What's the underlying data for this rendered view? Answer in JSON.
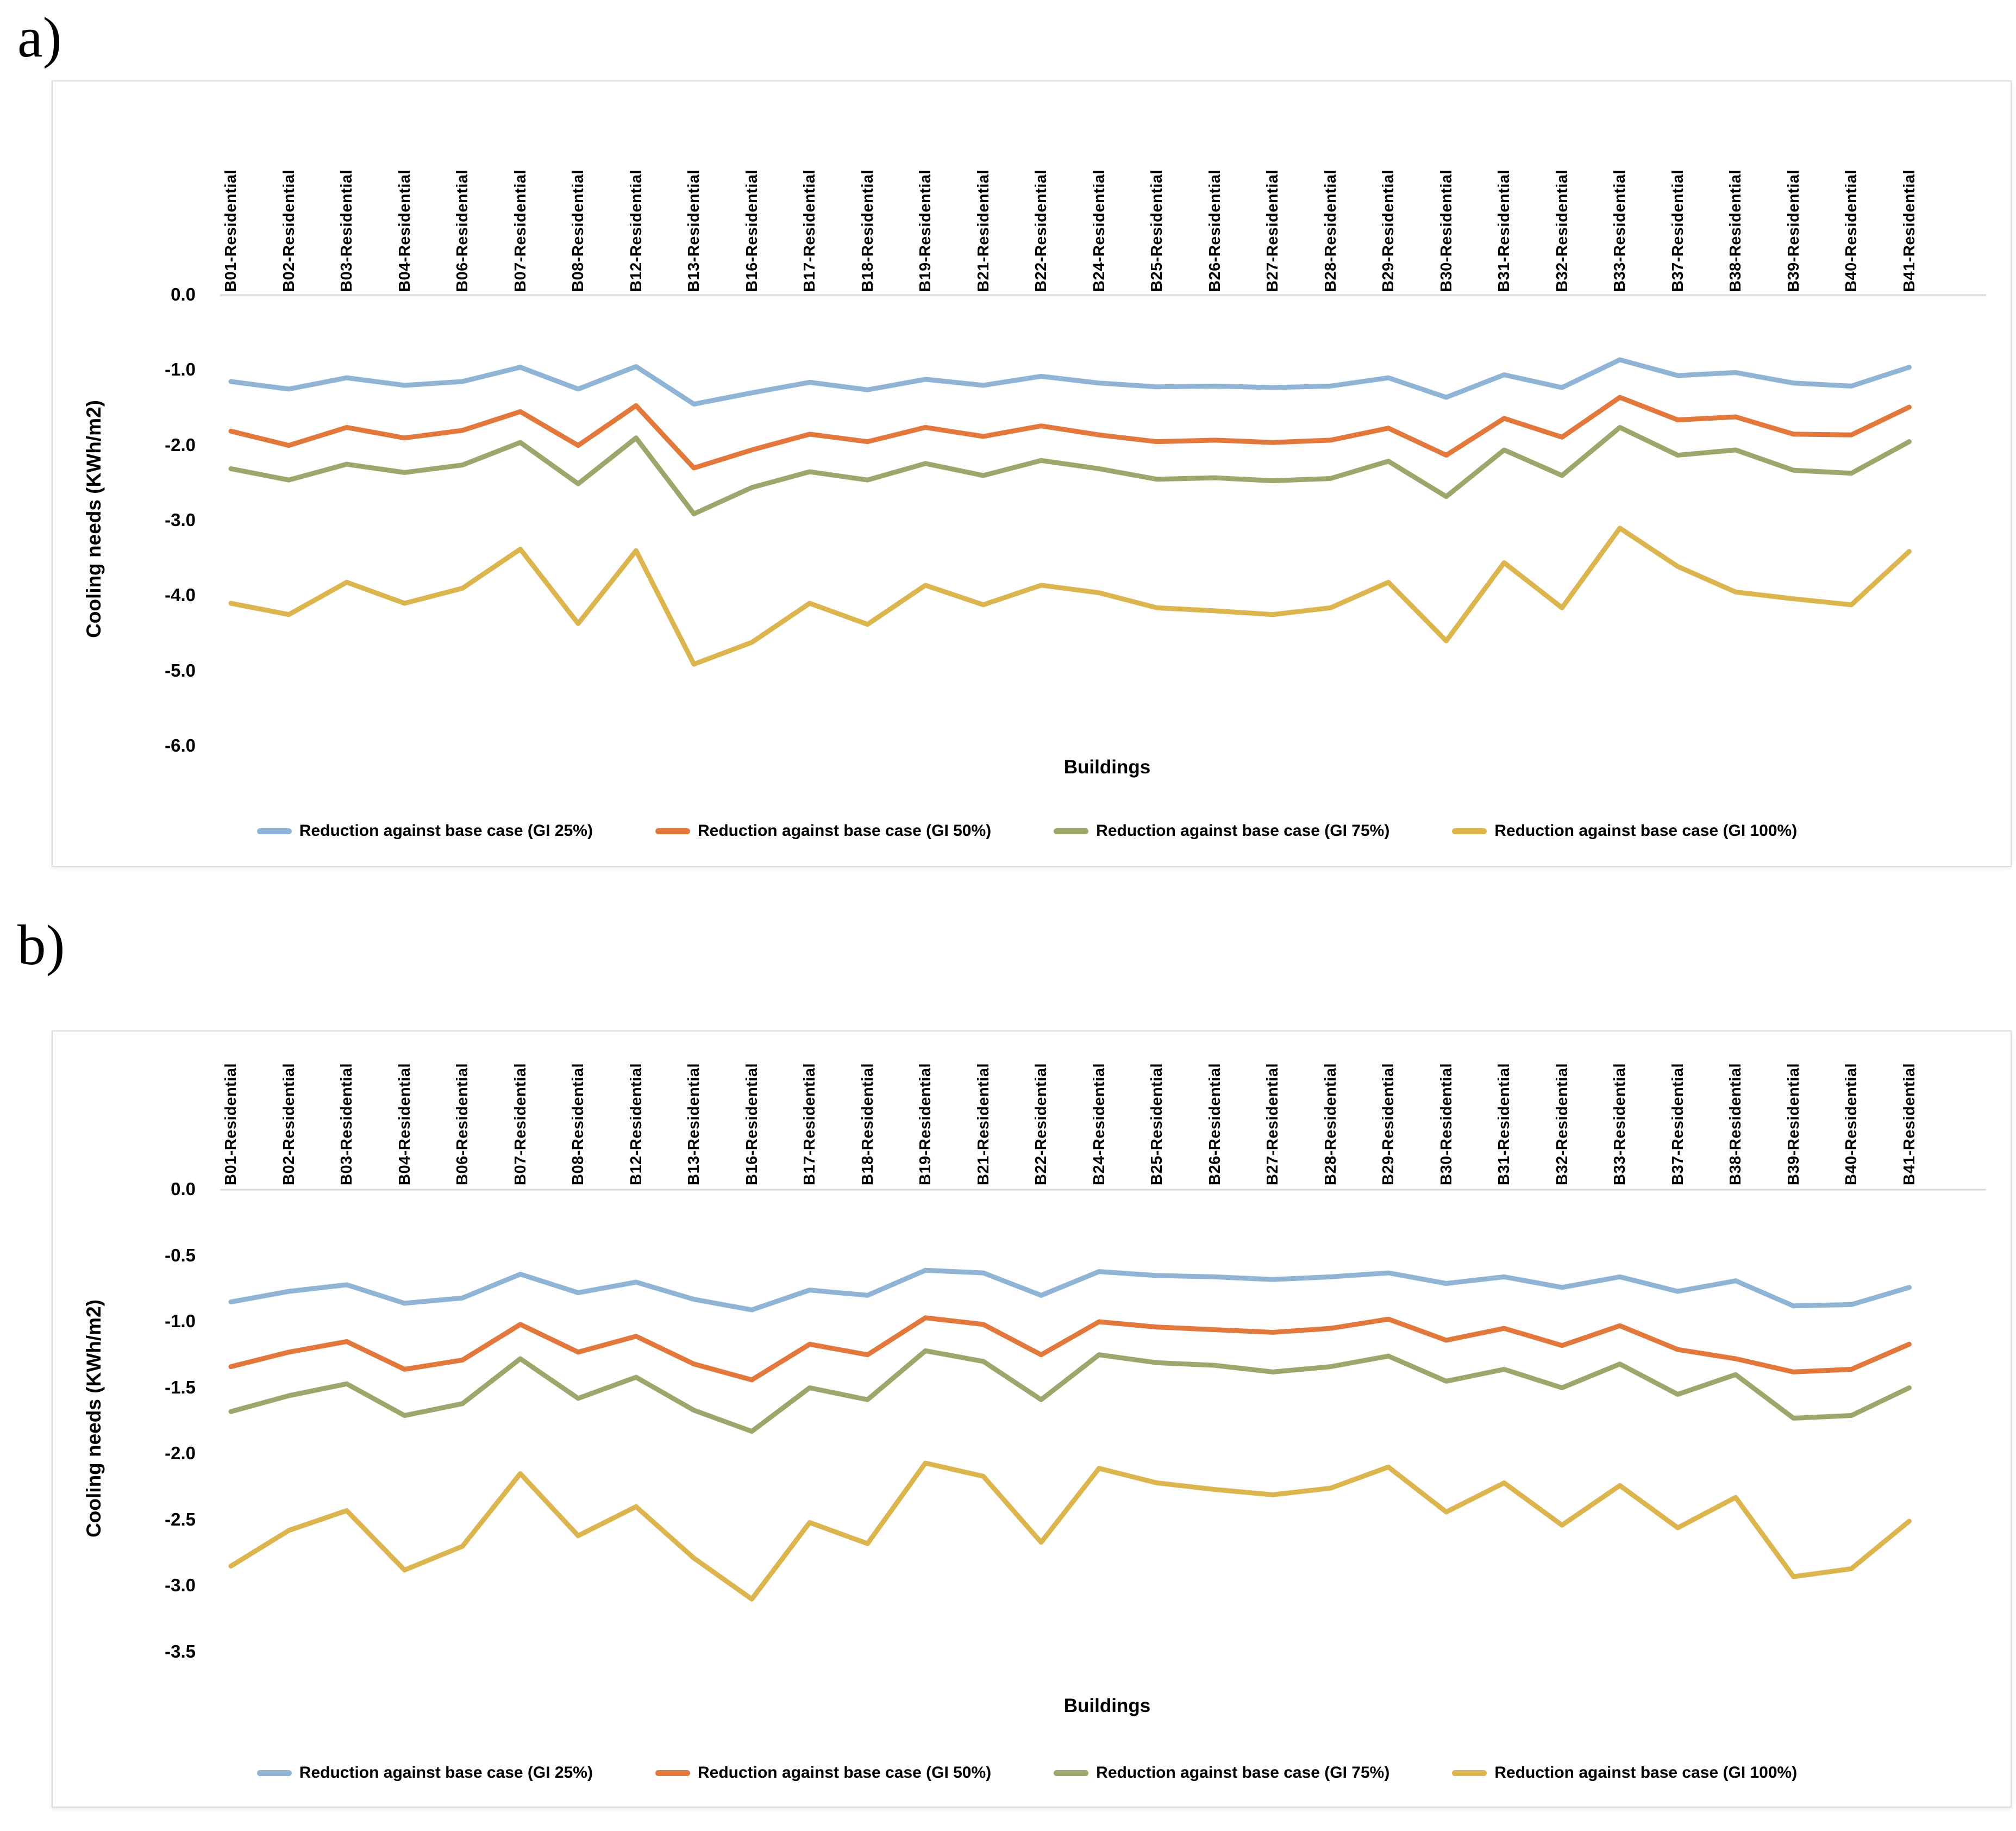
{
  "figure": {
    "panel_a_label": "a)",
    "panel_b_label": "b)"
  },
  "legend": [
    {
      "label": "Reduction against base case (GI 25%)",
      "color": "#8FB4D5"
    },
    {
      "label": "Reduction against base case (GI 50%)",
      "color": "#E2783B"
    },
    {
      "label": "Reduction against base case (GI 75%)",
      "color": "#9CA76C"
    },
    {
      "label": "Reduction against base case (GI 100%)",
      "color": "#DDB54E"
    }
  ],
  "chart_data": [
    {
      "type": "line",
      "panel": "a",
      "title": "",
      "xlabel": "Buildings",
      "ylabel": "Cooling needs (KWh/m2)",
      "ylim": [
        -6.0,
        0.0
      ],
      "yticks": [
        "0.0",
        "-1.0",
        "-2.0",
        "-3.0",
        "-4.0",
        "-5.0",
        "-6.0"
      ],
      "grid": "zero-line-only",
      "legend_position": "bottom",
      "categories": [
        "B01-Residential",
        "B02-Residential",
        "B03-Residential",
        "B04-Residential",
        "B06-Residential",
        "B07-Residential",
        "B08-Residential",
        "B12-Residential",
        "B13-Residential",
        "B16-Residential",
        "B17-Residential",
        "B18-Residential",
        "B19-Residential",
        "B21-Residential",
        "B22-Residential",
        "B24-Residential",
        "B25-Residential",
        "B26-Residential",
        "B27-Residential",
        "B28-Residential",
        "B29-Residential",
        "B30-Residential",
        "B31-Residential",
        "B32-Residential",
        "B33-Residential",
        "B37-Residential",
        "B38-Residential",
        "B39-Residential",
        "B40-Residential",
        "B41-Residential"
      ],
      "series": [
        {
          "name": "Reduction against base case (GI 25%)",
          "color": "#8FB4D5",
          "values": [
            -1.15,
            -1.25,
            -1.1,
            -1.2,
            -1.15,
            -0.96,
            -1.25,
            -0.95,
            -1.45,
            -1.3,
            -1.16,
            -1.26,
            -1.12,
            -1.2,
            -1.08,
            -1.17,
            -1.22,
            -1.21,
            -1.23,
            -1.21,
            -1.1,
            -1.36,
            -1.06,
            -1.23,
            -0.86,
            -1.07,
            -1.03,
            -1.17,
            -1.21,
            -0.96
          ]
        },
        {
          "name": "Reduction against base case (GI 50%)",
          "color": "#E2783B",
          "values": [
            -1.81,
            -2.0,
            -1.76,
            -1.9,
            -1.8,
            -1.55,
            -2.0,
            -1.47,
            -2.3,
            -2.06,
            -1.85,
            -1.95,
            -1.76,
            -1.88,
            -1.74,
            -1.86,
            -1.95,
            -1.93,
            -1.96,
            -1.93,
            -1.77,
            -2.13,
            -1.64,
            -1.89,
            -1.36,
            -1.66,
            -1.62,
            -1.85,
            -1.86,
            -1.49
          ]
        },
        {
          "name": "Reduction against base case (GI 75%)",
          "color": "#9CA76C",
          "values": [
            -2.31,
            -2.46,
            -2.25,
            -2.36,
            -2.26,
            -1.96,
            -2.51,
            -1.9,
            -2.91,
            -2.56,
            -2.35,
            -2.46,
            -2.24,
            -2.4,
            -2.2,
            -2.31,
            -2.45,
            -2.43,
            -2.47,
            -2.44,
            -2.21,
            -2.68,
            -2.06,
            -2.4,
            -1.76,
            -2.13,
            -2.06,
            -2.33,
            -2.37,
            -1.95
          ]
        },
        {
          "name": "Reduction against base case (GI 100%)",
          "color": "#DDB54E",
          "values": [
            -4.1,
            -4.25,
            -3.82,
            -4.1,
            -3.9,
            -3.38,
            -4.37,
            -3.4,
            -4.91,
            -4.62,
            -4.1,
            -4.38,
            -3.86,
            -4.12,
            -3.86,
            -3.96,
            -4.16,
            -4.2,
            -4.25,
            -4.16,
            -3.82,
            -4.6,
            -3.56,
            -4.16,
            -3.1,
            -3.61,
            -3.95,
            -4.04,
            -4.12,
            -3.41
          ]
        }
      ]
    },
    {
      "type": "line",
      "panel": "b",
      "title": "",
      "xlabel": "Buildings",
      "ylabel": "Cooling needs (KWh/m2)",
      "ylim": [
        -3.5,
        0.0
      ],
      "yticks": [
        "0.0",
        "-0.5",
        "-1.0",
        "-1.5",
        "-2.0",
        "-2.5",
        "-3.0",
        "-3.5"
      ],
      "grid": "zero-line-only",
      "legend_position": "bottom",
      "categories": [
        "B01-Residential",
        "B02-Residential",
        "B03-Residential",
        "B04-Residential",
        "B06-Residential",
        "B07-Residential",
        "B08-Residential",
        "B12-Residential",
        "B13-Residential",
        "B16-Residential",
        "B17-Residential",
        "B18-Residential",
        "B19-Residential",
        "B21-Residential",
        "B22-Residential",
        "B24-Residential",
        "B25-Residential",
        "B26-Residential",
        "B27-Residential",
        "B28-Residential",
        "B29-Residential",
        "B30-Residential",
        "B31-Residential",
        "B32-Residential",
        "B33-Residential",
        "B37-Residential",
        "B38-Residential",
        "B39-Residential",
        "B40-Residential",
        "B41-Residential"
      ],
      "series": [
        {
          "name": "Reduction against base case (GI 25%)",
          "color": "#8FB4D5",
          "values": [
            -0.85,
            -0.77,
            -0.72,
            -0.86,
            -0.82,
            -0.64,
            -0.78,
            -0.7,
            -0.83,
            -0.91,
            -0.76,
            -0.8,
            -0.61,
            -0.63,
            -0.8,
            -0.62,
            -0.65,
            -0.66,
            -0.68,
            -0.66,
            -0.63,
            -0.71,
            -0.66,
            -0.74,
            -0.66,
            -0.77,
            -0.69,
            -0.88,
            -0.87,
            -0.74
          ]
        },
        {
          "name": "Reduction against base case (GI 50%)",
          "color": "#E2783B",
          "values": [
            -1.34,
            -1.23,
            -1.15,
            -1.36,
            -1.29,
            -1.02,
            -1.23,
            -1.11,
            -1.32,
            -1.44,
            -1.17,
            -1.25,
            -0.97,
            -1.02,
            -1.25,
            -1.0,
            -1.04,
            -1.06,
            -1.08,
            -1.05,
            -0.98,
            -1.14,
            -1.05,
            -1.18,
            -1.03,
            -1.21,
            -1.28,
            -1.38,
            -1.36,
            -1.17
          ]
        },
        {
          "name": "Reduction against base case (GI 75%)",
          "color": "#9CA76C",
          "values": [
            -1.68,
            -1.56,
            -1.47,
            -1.71,
            -1.62,
            -1.28,
            -1.58,
            -1.42,
            -1.67,
            -1.83,
            -1.5,
            -1.59,
            -1.22,
            -1.3,
            -1.59,
            -1.25,
            -1.31,
            -1.33,
            -1.38,
            -1.34,
            -1.26,
            -1.45,
            -1.36,
            -1.5,
            -1.32,
            -1.55,
            -1.4,
            -1.73,
            -1.71,
            -1.5
          ]
        },
        {
          "name": "Reduction against base case (GI 100%)",
          "color": "#DDB54E",
          "values": [
            -2.85,
            -2.58,
            -2.43,
            -2.88,
            -2.7,
            -2.15,
            -2.62,
            -2.4,
            -2.79,
            -3.1,
            -2.52,
            -2.68,
            -2.07,
            -2.17,
            -2.67,
            -2.11,
            -2.22,
            -2.27,
            -2.31,
            -2.26,
            -2.1,
            -2.44,
            -2.22,
            -2.54,
            -2.24,
            -2.56,
            -2.33,
            -2.93,
            -2.87,
            -2.51
          ]
        }
      ]
    }
  ]
}
